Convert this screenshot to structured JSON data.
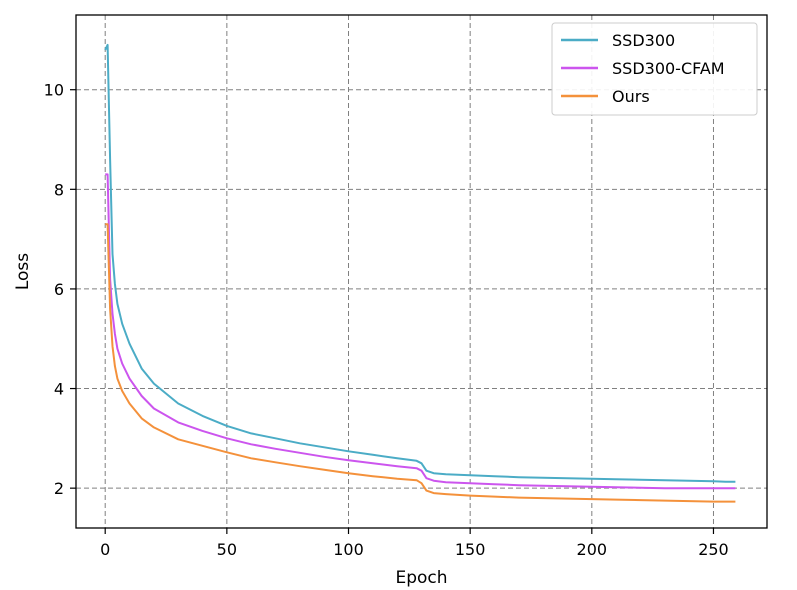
{
  "chart_data": {
    "type": "line",
    "title": "",
    "xlabel": "Epoch",
    "ylabel": "Loss",
    "xlim": [
      -12,
      272
    ],
    "ylim": [
      1.2,
      11.5
    ],
    "xticks": [
      0,
      50,
      100,
      150,
      200,
      250
    ],
    "yticks": [
      2,
      4,
      6,
      8,
      10
    ],
    "grid": true,
    "grid_style": "dashed",
    "legend_position": "top-right",
    "series": [
      {
        "name": "SSD300",
        "color": "#4bacc6",
        "x": [
          0,
          1,
          2,
          3,
          4,
          5,
          7,
          10,
          15,
          20,
          30,
          40,
          50,
          60,
          70,
          80,
          90,
          100,
          110,
          120,
          128,
          130,
          132,
          135,
          140,
          150,
          160,
          170,
          180,
          190,
          200,
          210,
          220,
          230,
          240,
          250,
          255,
          259
        ],
        "y": [
          10.8,
          10.9,
          8.6,
          6.7,
          6.1,
          5.7,
          5.3,
          4.9,
          4.4,
          4.1,
          3.7,
          3.45,
          3.25,
          3.1,
          3.0,
          2.9,
          2.82,
          2.74,
          2.67,
          2.6,
          2.55,
          2.5,
          2.35,
          2.3,
          2.28,
          2.26,
          2.24,
          2.22,
          2.21,
          2.2,
          2.19,
          2.18,
          2.17,
          2.16,
          2.15,
          2.14,
          2.13,
          2.13
        ]
      },
      {
        "name": "SSD300-CFAM",
        "color": "#cc55ee",
        "x": [
          0,
          1,
          2,
          3,
          4,
          5,
          7,
          10,
          15,
          20,
          30,
          40,
          50,
          60,
          70,
          80,
          90,
          100,
          110,
          120,
          128,
          130,
          132,
          135,
          140,
          150,
          160,
          170,
          180,
          190,
          200,
          210,
          220,
          230,
          240,
          250,
          255,
          259
        ],
        "y": [
          8.3,
          8.3,
          6.2,
          5.5,
          5.1,
          4.8,
          4.5,
          4.2,
          3.85,
          3.6,
          3.32,
          3.15,
          3.0,
          2.88,
          2.79,
          2.71,
          2.63,
          2.56,
          2.5,
          2.44,
          2.4,
          2.35,
          2.2,
          2.15,
          2.12,
          2.1,
          2.08,
          2.06,
          2.05,
          2.04,
          2.03,
          2.02,
          2.01,
          2.0,
          2.0,
          2.0,
          2.0,
          2.0
        ]
      },
      {
        "name": "Ours",
        "color": "#f4913b",
        "x": [
          0,
          1,
          2,
          3,
          4,
          5,
          7,
          10,
          15,
          20,
          30,
          40,
          50,
          60,
          70,
          80,
          90,
          100,
          110,
          120,
          128,
          130,
          132,
          135,
          140,
          150,
          160,
          170,
          180,
          190,
          200,
          210,
          220,
          230,
          240,
          250,
          255,
          259
        ],
        "y": [
          7.3,
          7.3,
          5.6,
          4.85,
          4.45,
          4.2,
          3.95,
          3.7,
          3.4,
          3.22,
          2.98,
          2.85,
          2.72,
          2.6,
          2.52,
          2.44,
          2.37,
          2.3,
          2.24,
          2.19,
          2.16,
          2.1,
          1.95,
          1.9,
          1.88,
          1.85,
          1.83,
          1.81,
          1.8,
          1.79,
          1.78,
          1.77,
          1.76,
          1.75,
          1.74,
          1.73,
          1.73,
          1.73
        ]
      }
    ]
  }
}
